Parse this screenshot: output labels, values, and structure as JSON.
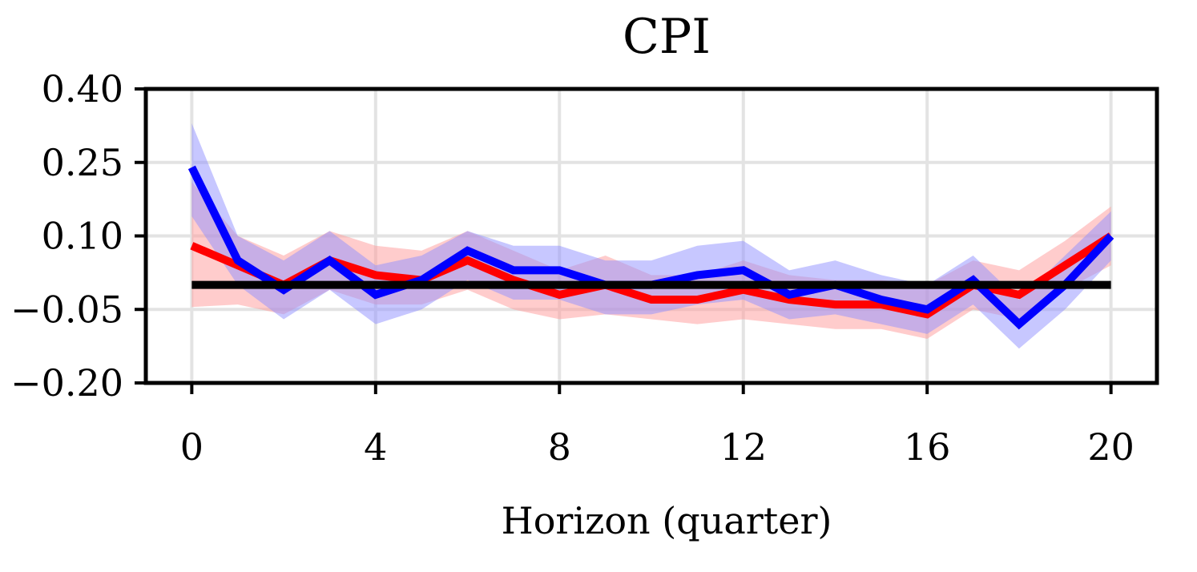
{
  "chart_data": {
    "type": "line",
    "title": "CPI",
    "xlabel": "Horizon (quarter)",
    "ylabel": "",
    "xlim": [
      -1,
      21
    ],
    "ylim": [
      -0.2,
      0.4
    ],
    "xticks": [
      0,
      4,
      8,
      12,
      16,
      20
    ],
    "xtick_labels": [
      "0",
      "4",
      "8",
      "12",
      "16",
      "20"
    ],
    "yticks": [
      0.4,
      0.25,
      0.1,
      -0.05,
      -0.2
    ],
    "ytick_labels": [
      "0.40",
      "0.25",
      "0.10",
      "−0.05",
      "−0.20"
    ],
    "grid": true,
    "x": [
      0,
      1,
      2,
      3,
      4,
      5,
      6,
      7,
      8,
      9,
      10,
      11,
      12,
      13,
      14,
      15,
      16,
      17,
      18,
      19,
      20
    ],
    "series": [
      {
        "color": "#ff0000",
        "band_color": "#ff9999",
        "values": [
          0.08,
          0.04,
          0.0,
          0.05,
          0.02,
          0.01,
          0.05,
          0.01,
          -0.02,
          0.0,
          -0.03,
          -0.03,
          -0.01,
          -0.03,
          -0.04,
          -0.04,
          -0.06,
          0.0,
          -0.02,
          0.04,
          0.1
        ],
        "lower": [
          -0.045,
          -0.04,
          -0.06,
          -0.01,
          -0.04,
          -0.04,
          -0.01,
          -0.05,
          -0.07,
          -0.06,
          -0.07,
          -0.08,
          -0.07,
          -0.08,
          -0.09,
          -0.09,
          -0.11,
          -0.05,
          -0.07,
          -0.01,
          0.04
        ],
        "upper": [
          0.21,
          0.1,
          0.06,
          0.11,
          0.08,
          0.07,
          0.11,
          0.07,
          0.03,
          0.06,
          0.02,
          0.02,
          0.05,
          0.02,
          0.01,
          0.01,
          0.0,
          0.05,
          0.03,
          0.09,
          0.16
        ]
      },
      {
        "color": "#0000ff",
        "band_color": "#8f8fff",
        "values": [
          0.24,
          0.05,
          -0.01,
          0.05,
          -0.02,
          0.01,
          0.07,
          0.03,
          0.03,
          0.0,
          0.0,
          0.02,
          0.03,
          -0.02,
          0.0,
          -0.03,
          -0.05,
          0.01,
          -0.08,
          0.0,
          0.1
        ],
        "lower": [
          0.14,
          0.0,
          -0.07,
          -0.01,
          -0.08,
          -0.05,
          0.01,
          -0.03,
          -0.03,
          -0.06,
          -0.06,
          -0.04,
          -0.03,
          -0.07,
          -0.06,
          -0.08,
          -0.1,
          -0.04,
          -0.13,
          -0.05,
          0.05
        ],
        "upper": [
          0.33,
          0.1,
          0.05,
          0.11,
          0.04,
          0.06,
          0.11,
          0.08,
          0.08,
          0.05,
          0.05,
          0.08,
          0.09,
          0.03,
          0.05,
          0.02,
          0.0,
          0.06,
          -0.03,
          0.06,
          0.15
        ]
      },
      {
        "color": "#000000",
        "values": [
          0,
          0,
          0,
          0,
          0,
          0,
          0,
          0,
          0,
          0,
          0,
          0,
          0,
          0,
          0,
          0,
          0,
          0,
          0,
          0,
          0
        ]
      }
    ]
  }
}
